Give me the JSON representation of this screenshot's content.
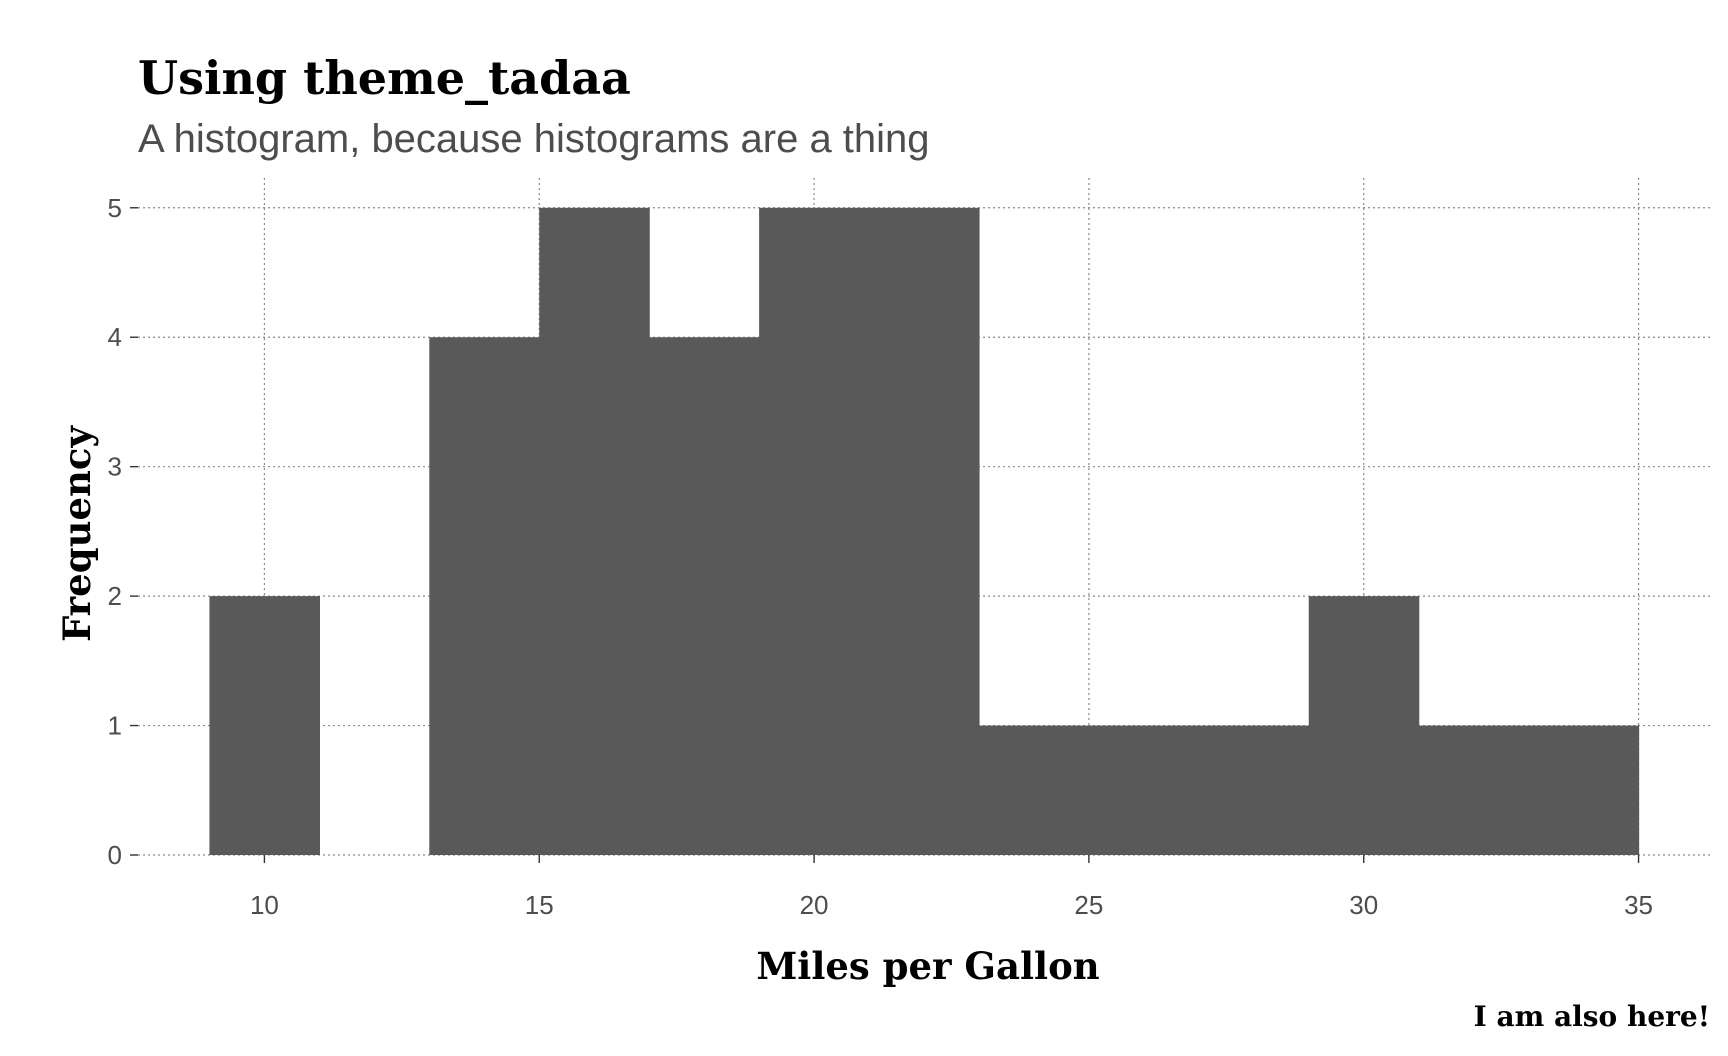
{
  "chart_data": {
    "type": "bar",
    "title": "Using theme_tadaa",
    "subtitle": "A histogram, because histograms are a thing",
    "xlabel": "Miles per Gallon",
    "ylabel": "Frequency",
    "caption": "I am also here!",
    "bar_color": "#595959",
    "binwidth": 2,
    "bins": [
      {
        "x": 10,
        "count": 2
      },
      {
        "x": 12,
        "count": 0
      },
      {
        "x": 14,
        "count": 4
      },
      {
        "x": 16,
        "count": 5
      },
      {
        "x": 18,
        "count": 4
      },
      {
        "x": 20,
        "count": 5
      },
      {
        "x": 22,
        "count": 5
      },
      {
        "x": 24,
        "count": 1
      },
      {
        "x": 26,
        "count": 1
      },
      {
        "x": 28,
        "count": 1
      },
      {
        "x": 30,
        "count": 2
      },
      {
        "x": 32,
        "count": 1
      },
      {
        "x": 34,
        "count": 1
      }
    ],
    "xlim": [
      7.7,
      36.3
    ],
    "ylim": [
      0,
      5.23
    ],
    "x_ticks": [
      "10",
      "15",
      "20",
      "25",
      "30",
      "35"
    ],
    "y_ticks": [
      "0",
      "1",
      "2",
      "3",
      "4",
      "5"
    ],
    "grid": true
  }
}
